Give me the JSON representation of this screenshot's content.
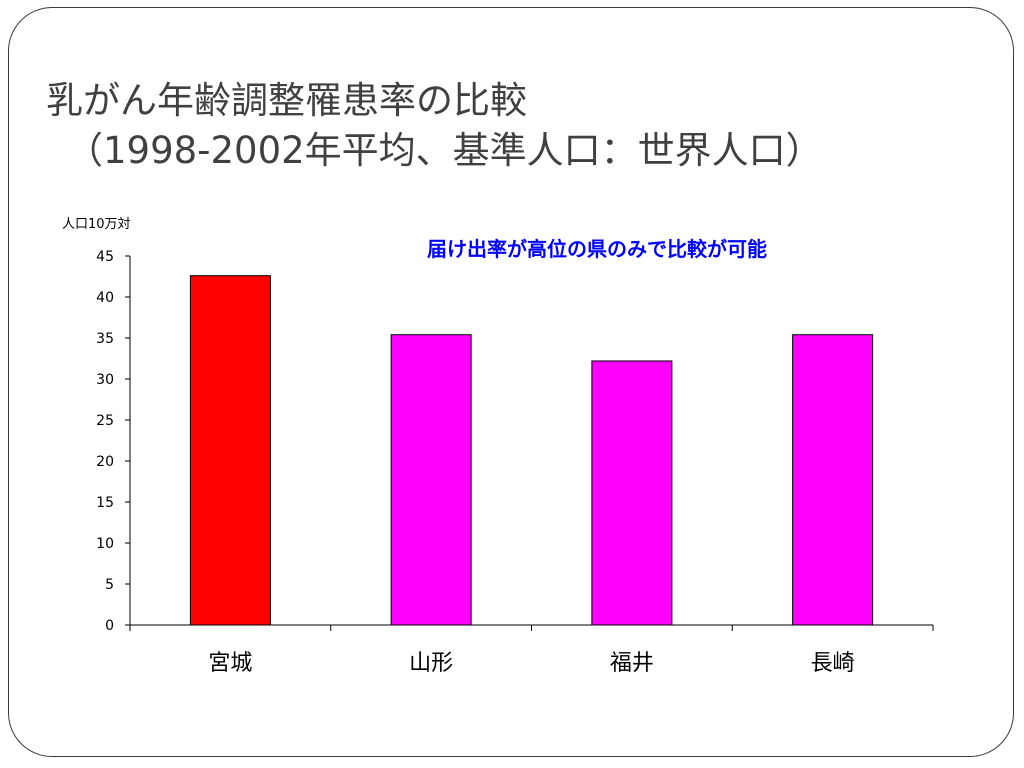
{
  "slide": {
    "title_line1": "乳がん年齢調整罹患率の比較",
    "title_line2": "（1998-2002年平均、基準人口：世界人口）"
  },
  "note": "届け出率が高位の県のみで比較が可能",
  "colors": {
    "highlight_bar": "#ff0000",
    "other_bar": "#ff00ff",
    "note_text": "#0000ff",
    "title_text": "#404040"
  },
  "chart_data": {
    "type": "bar",
    "ylabel": "人口10万対",
    "xlabel": "",
    "categories": [
      "宮城",
      "山形",
      "福井",
      "長崎"
    ],
    "values": [
      42.6,
      35.4,
      32.2,
      35.4
    ],
    "bar_colors": [
      "#ff0000",
      "#ff00ff",
      "#ff00ff",
      "#ff00ff"
    ],
    "ylim": [
      0,
      45
    ],
    "yticks": [
      0,
      5,
      10,
      15,
      20,
      25,
      30,
      35,
      40,
      45
    ],
    "grid": false,
    "legend": "none"
  }
}
